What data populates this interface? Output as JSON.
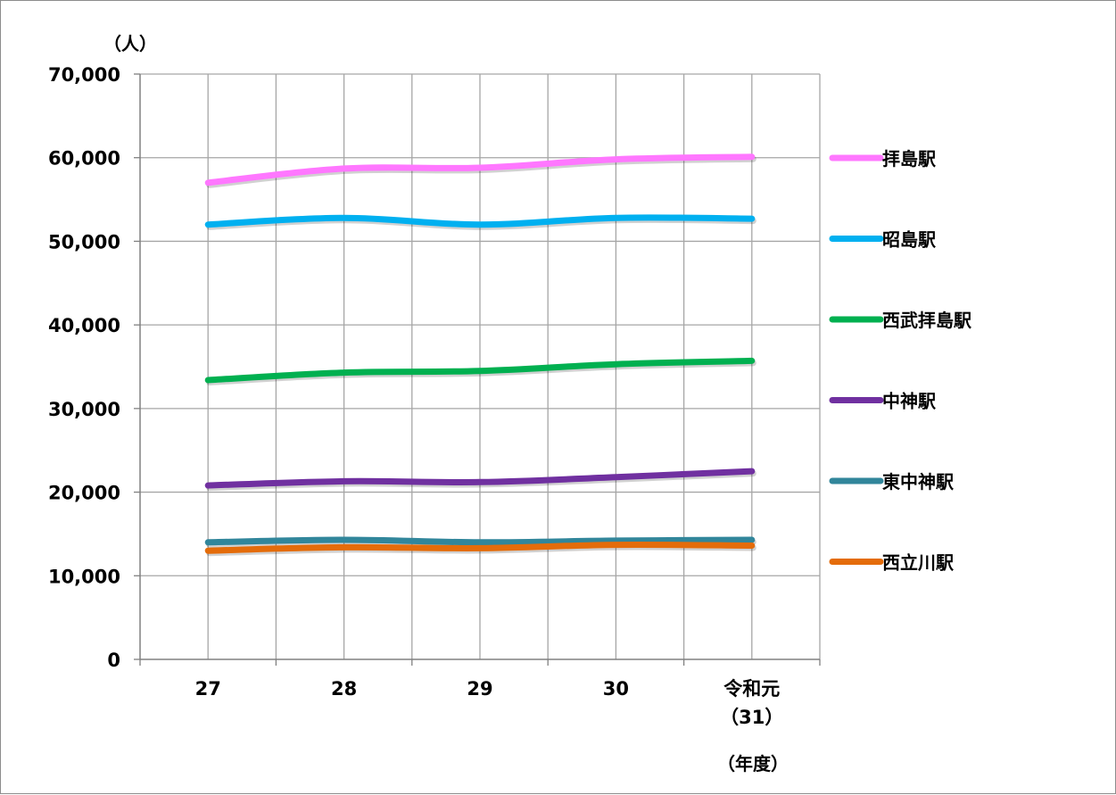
{
  "chart_data": {
    "type": "line",
    "title": "",
    "ylabel": "（人）",
    "xlabel": "（年度）",
    "categories": [
      "27",
      "28",
      "29",
      "30",
      "令和元（31）"
    ],
    "category_labels": [
      [
        "27"
      ],
      [
        "28"
      ],
      [
        "29"
      ],
      [
        "30"
      ],
      [
        "令和元",
        "（31）"
      ]
    ],
    "ylim": [
      0,
      70000
    ],
    "yticks": [
      0,
      10000,
      20000,
      30000,
      40000,
      50000,
      60000,
      70000
    ],
    "ytick_labels": [
      "0",
      "10,000",
      "20,000",
      "30,000",
      "40,000",
      "50,000",
      "60,000",
      "70,000"
    ],
    "grid": true,
    "legend_position": "right",
    "series": [
      {
        "name": "拝島駅",
        "color": "#ff77ff",
        "values": [
          57000,
          58700,
          58800,
          59800,
          60100
        ]
      },
      {
        "name": "昭島駅",
        "color": "#00b0f0",
        "values": [
          52000,
          52800,
          52000,
          52800,
          52700
        ]
      },
      {
        "name": "西武拝島駅",
        "color": "#00b050",
        "values": [
          33400,
          34300,
          34500,
          35300,
          35700
        ]
      },
      {
        "name": "中神駅",
        "color": "#7030a0",
        "values": [
          20800,
          21300,
          21200,
          21800,
          22500
        ]
      },
      {
        "name": "東中神駅",
        "color": "#31869b",
        "values": [
          14000,
          14300,
          14000,
          14200,
          14300
        ]
      },
      {
        "name": "西立川駅",
        "color": "#e46c0a",
        "values": [
          13000,
          13400,
          13300,
          13700,
          13600
        ]
      }
    ]
  }
}
